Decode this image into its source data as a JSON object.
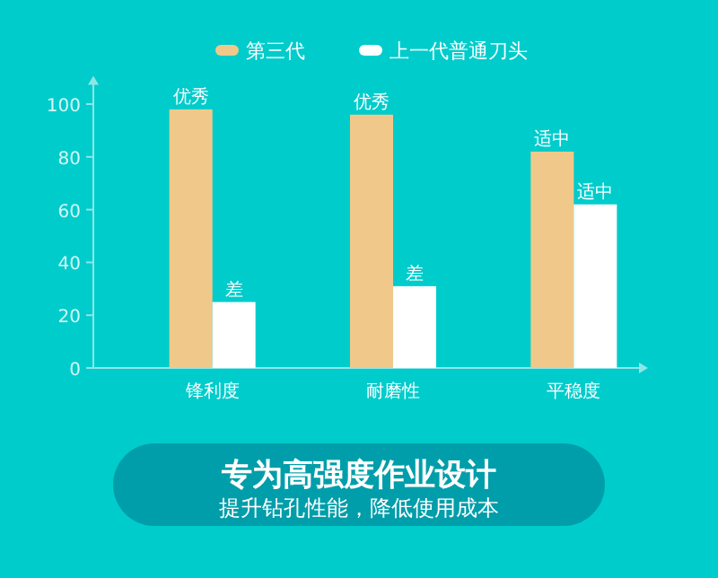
{
  "chart_data": {
    "type": "bar",
    "categories": [
      "锋利度",
      "耐磨性",
      "平稳度"
    ],
    "series": [
      {
        "name": "第三代",
        "color": "#f0c98a",
        "values": [
          98,
          96,
          82
        ],
        "value_labels": [
          "优秀",
          "优秀",
          "适中"
        ]
      },
      {
        "name": "上一代普通刀头",
        "color": "#ffffff",
        "values": [
          25,
          31,
          62
        ],
        "value_labels": [
          "差",
          "差",
          "适中"
        ]
      }
    ],
    "ylim": [
      0,
      110
    ],
    "yticks": [
      0,
      20,
      40,
      60,
      80,
      100
    ],
    "legend": "top",
    "annotations": [
      "专为高强度作业设计",
      "提升钻孔性能，降低使用成本"
    ]
  }
}
